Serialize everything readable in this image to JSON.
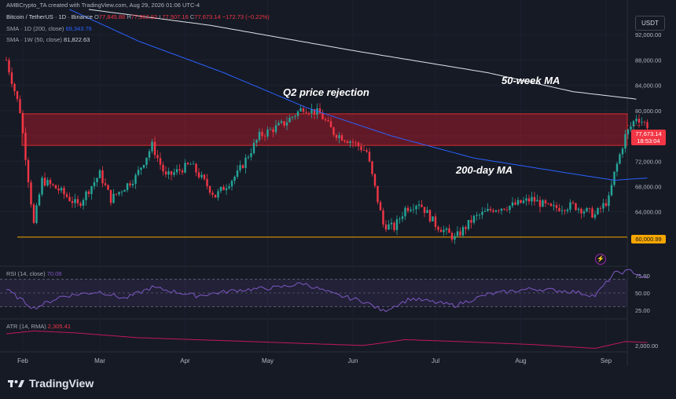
{
  "watermark": "AMBCrypto_TA created with TradingView.com, Aug 29, 2026 01:06 UTC-4",
  "currency_button": "USDT",
  "legend": {
    "symbol": "Bitcoin / TetherUS · 1D · Binance",
    "o_label": "O",
    "o_value": "77,845.88",
    "h_label": "H",
    "h_value": "77,963.92",
    "l_label": "L",
    "l_value": "77,507.16",
    "c_label": "C",
    "c_value": "77,673.14",
    "change": "−172.73 (−0.22%)",
    "sma200_label": "SMA · 1D (200, close)",
    "sma200_value": "69,343.76",
    "sma50_label": "SMA · 1W (50, close)",
    "sma50_value": "81,822.63",
    "rsi_label": "RSI (14, close)",
    "rsi_value": "70.08",
    "atr_label": "ATR (14, RMA)",
    "atr_value": "2,305.41"
  },
  "annotations": {
    "q2": "Q2 price rejection",
    "ma50": "50-week MA",
    "ma200": "200-day MA"
  },
  "price_tag": {
    "price": "77,673.14",
    "countdown": "18:53:04"
  },
  "support_tag": "60,000.99",
  "branding": "TradingView",
  "colors": {
    "up": "#26a69a",
    "down": "#f23645",
    "sma200": "#2962ff",
    "sma50": "#e0e3eb",
    "zone": "#a31a2a",
    "support": "#f7a600",
    "rsi": "#7e57c2",
    "atr": "#c2185b"
  },
  "chart_data": {
    "type": "candlestick",
    "x_ticks": [
      "Feb",
      "Mar",
      "Apr",
      "May",
      "Jun",
      "Jul",
      "Aug",
      "Sep"
    ],
    "price_ticks": [
      "92,000.00",
      "88,000.00",
      "84,000.00",
      "80,000.00",
      "76,000.00",
      "72,000.00",
      "68,000.00",
      "64,000.00"
    ],
    "price_range": [
      58000,
      96000
    ],
    "resistance_zone": [
      74500,
      79500
    ],
    "support_line": 60000.99,
    "last_price": 77673.14,
    "price_anchors": [
      [
        "2026-01-26",
        88000
      ],
      [
        "2026-01-31",
        80000
      ],
      [
        "2026-02-05",
        62000
      ],
      [
        "2026-02-08",
        69000
      ],
      [
        "2026-02-14",
        67500
      ],
      [
        "2026-02-21",
        65000
      ],
      [
        "2026-03-01",
        70000
      ],
      [
        "2026-03-05",
        66000
      ],
      [
        "2026-03-14",
        69500
      ],
      [
        "2026-03-20",
        74500
      ],
      [
        "2026-03-25",
        69500
      ],
      [
        "2026-04-03",
        71500
      ],
      [
        "2026-04-12",
        66500
      ],
      [
        "2026-04-20",
        70000
      ],
      [
        "2026-04-28",
        76000
      ],
      [
        "2026-05-07",
        78000
      ],
      [
        "2026-05-14",
        80500
      ],
      [
        "2026-05-20",
        79500
      ],
      [
        "2026-05-25",
        76500
      ],
      [
        "2026-06-01",
        75000
      ],
      [
        "2026-06-06",
        73500
      ],
      [
        "2026-06-12",
        62000
      ],
      [
        "2026-06-16",
        61500
      ],
      [
        "2026-06-20",
        64500
      ],
      [
        "2026-06-25",
        65500
      ],
      [
        "2026-07-01",
        62000
      ],
      [
        "2026-07-08",
        59800
      ],
      [
        "2026-07-15",
        63000
      ],
      [
        "2026-07-22",
        64500
      ],
      [
        "2026-07-29",
        65000
      ],
      [
        "2026-08-05",
        66000
      ],
      [
        "2026-08-12",
        64500
      ],
      [
        "2026-08-20",
        65000
      ],
      [
        "2026-08-28",
        63500
      ],
      [
        "2026-09-02",
        66000
      ],
      [
        "2026-09-04",
        70000
      ],
      [
        "2026-09-08",
        76000
      ],
      [
        "2026-09-12",
        79000
      ],
      [
        "2026-09-16",
        77673
      ]
    ],
    "sma_1w_50": [
      [
        "2026-02-25",
        96000
      ],
      [
        "2026-04-10",
        93500
      ],
      [
        "2026-06-01",
        89500
      ],
      [
        "2026-07-20",
        86000
      ],
      [
        "2026-08-20",
        83000
      ],
      [
        "2026-09-12",
        81822
      ]
    ],
    "sma_1d_200": [
      [
        "2026-02-18",
        96000
      ],
      [
        "2026-03-15",
        91000
      ],
      [
        "2026-04-15",
        86000
      ],
      [
        "2026-05-15",
        80500
      ],
      [
        "2026-06-15",
        76000
      ],
      [
        "2026-07-15",
        72500
      ],
      [
        "2026-08-20",
        70000
      ],
      [
        "2026-09-04",
        69000
      ],
      [
        "2026-09-16",
        69343
      ]
    ],
    "rsi": {
      "ticks": [
        "75.00",
        "50.00",
        "25.00"
      ],
      "range": [
        15,
        85
      ],
      "overbought": 70,
      "oversold": 30,
      "values": [
        [
          "2026-01-26",
          55
        ],
        [
          "2026-02-05",
          28
        ],
        [
          "2026-02-15",
          45
        ],
        [
          "2026-03-01",
          52
        ],
        [
          "2026-03-10",
          42
        ],
        [
          "2026-03-20",
          58
        ],
        [
          "2026-04-05",
          46
        ],
        [
          "2026-04-20",
          54
        ],
        [
          "2026-05-05",
          58
        ],
        [
          "2026-05-14",
          64
        ],
        [
          "2026-05-25",
          48
        ],
        [
          "2026-06-05",
          38
        ],
        [
          "2026-06-12",
          24
        ],
        [
          "2026-06-22",
          42
        ],
        [
          "2026-07-08",
          32
        ],
        [
          "2026-07-20",
          48
        ],
        [
          "2026-08-05",
          56
        ],
        [
          "2026-08-20",
          52
        ],
        [
          "2026-08-28",
          46
        ],
        [
          "2026-09-04",
          78
        ],
        [
          "2026-09-10",
          82
        ],
        [
          "2026-09-16",
          70
        ]
      ]
    },
    "atr": {
      "ticks": [
        "2,000.00"
      ],
      "range": [
        1500,
        4500
      ],
      "values": [
        [
          "2026-01-26",
          3200
        ],
        [
          "2026-02-05",
          3500
        ],
        [
          "2026-02-20",
          3300
        ],
        [
          "2026-03-15",
          2800
        ],
        [
          "2026-04-15",
          2500
        ],
        [
          "2026-05-15",
          2200
        ],
        [
          "2026-06-05",
          2000
        ],
        [
          "2026-06-20",
          2600
        ],
        [
          "2026-07-10",
          2400
        ],
        [
          "2026-08-05",
          2100
        ],
        [
          "2026-08-28",
          1700
        ],
        [
          "2026-09-08",
          2400
        ],
        [
          "2026-09-16",
          2305
        ]
      ]
    }
  }
}
